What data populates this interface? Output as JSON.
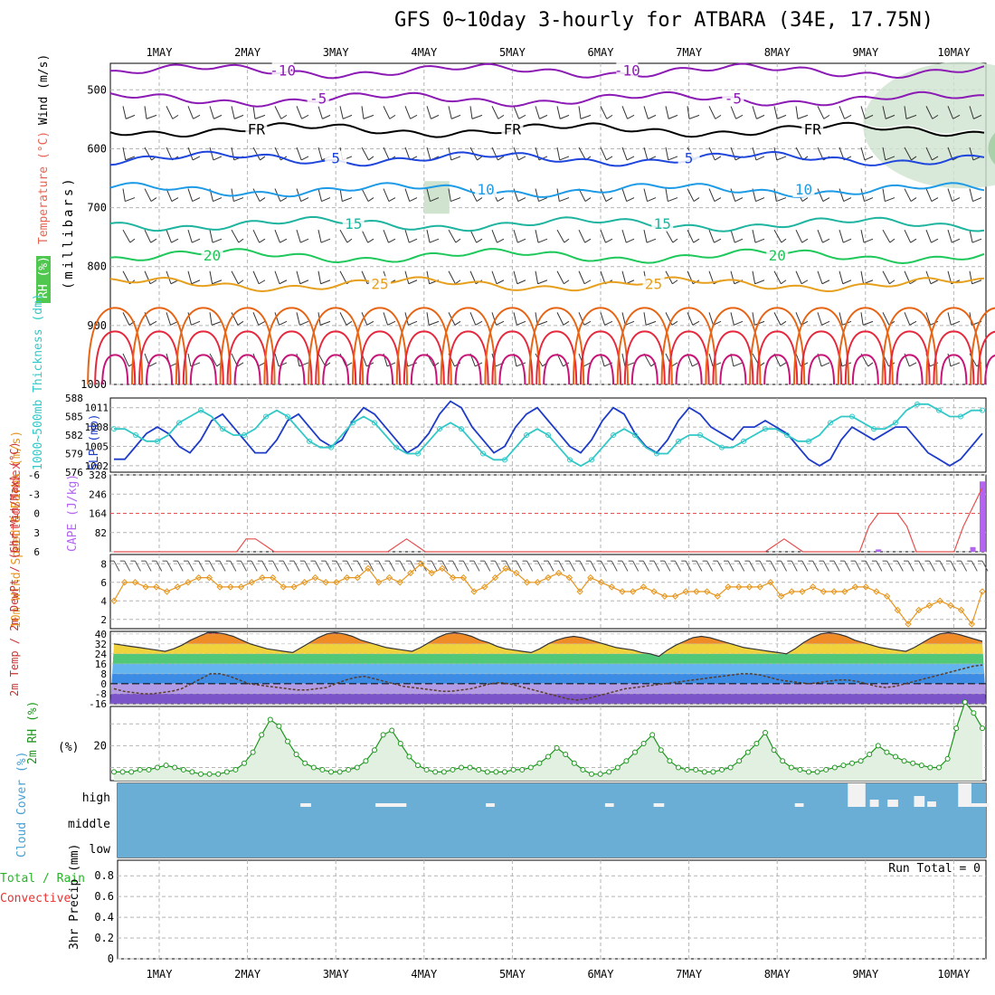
{
  "title": "GFS 0~10day 3-hourly for ATBARA (34E, 17.75N)",
  "dates": [
    "1MAY",
    "2MAY",
    "3MAY",
    "4MAY",
    "5MAY",
    "6MAY",
    "7MAY",
    "8MAY",
    "9MAY",
    "10MAY"
  ],
  "colors": {
    "purple": "#8c1ab4",
    "black": "#000000",
    "blue": "#1e46dc",
    "cyan": "#1e9be6",
    "teal": "#1eb4a0",
    "green": "#1ec85a",
    "orange": "#e6a01e",
    "darkorange": "#e66414",
    "red": "#e6283c",
    "magenta": "#c81478",
    "slp": "#1e3cc8",
    "thick": "#32c8c8",
    "li": "#e65050",
    "cape": "#b464f0",
    "wind": "#e6961e",
    "barb": "#505050",
    "rh": "#1e961e",
    "cloud": "#6aaed6",
    "precip_label_green": "#28b428",
    "precip_label_red": "#e63232"
  },
  "chart_data": [
    {
      "name": "sounding",
      "type": "contour",
      "ylabel": "(millibars)",
      "ytick_labels": [
        "500",
        "600",
        "700",
        "800",
        "900",
        "1000"
      ],
      "yticks": [
        500,
        600,
        700,
        800,
        900,
        1000
      ],
      "ylim": [
        455,
        1000
      ],
      "side_labels": {
        "rh": "RH (%)",
        "temp": "Temperature (°C)",
        "wind": "Wind (m/s)"
      },
      "isotherms": [
        {
          "label": "-10",
          "pressure": 468,
          "color": "purple",
          "label_positions": [
            1.4,
            5.3
          ]
        },
        {
          "label": "-5",
          "pressure": 516,
          "color": "purple",
          "label_positions": [
            1.8,
            6.5
          ]
        },
        {
          "label": "FR",
          "pressure": 568,
          "color": "black",
          "label_positions": [
            1.1,
            4.0,
            7.4
          ]
        },
        {
          "label": "5",
          "pressure": 617,
          "color": "blue",
          "label_positions": [
            2.0,
            6.0
          ]
        },
        {
          "label": "10",
          "pressure": 670,
          "color": "cyan",
          "label_positions": [
            3.7,
            7.3
          ]
        },
        {
          "label": "15",
          "pressure": 728,
          "color": "teal",
          "label_positions": [
            2.2,
            5.7
          ]
        },
        {
          "label": "20",
          "pressure": 782,
          "color": "green",
          "label_positions": [
            0.6,
            7.0
          ]
        },
        {
          "label": "25",
          "pressure": 830,
          "color": "orange",
          "label_positions": [
            2.5,
            5.6
          ]
        }
      ]
    },
    {
      "name": "slp_thickness",
      "type": "line",
      "ylabel_left": "1000~500mb Thickness (dm)",
      "ylabel_right": "SLP (mb)",
      "ytick_labels_left": [
        "576",
        "579",
        "582",
        "585",
        "588"
      ],
      "ytick_labels_right": [
        "1002",
        "1005",
        "1008",
        "1011"
      ],
      "ylim_right": [
        1001,
        1012.5
      ],
      "ylim_left": [
        576,
        588
      ],
      "series": [
        {
          "name": "SLP",
          "axis": "right",
          "values": [
            1003,
            1003,
            1005,
            1007,
            1008,
            1007,
            1005,
            1004,
            1006,
            1009,
            1010,
            1008,
            1006,
            1004,
            1004,
            1006,
            1009,
            1010,
            1008,
            1006,
            1005,
            1006,
            1009,
            1011,
            1010,
            1008,
            1006,
            1004,
            1005,
            1007,
            1010,
            1012,
            1011,
            1008,
            1006,
            1004,
            1005,
            1008,
            1010,
            1011,
            1009,
            1007,
            1005,
            1004,
            1006,
            1009,
            1011,
            1010,
            1007,
            1005,
            1004,
            1006,
            1009,
            1011,
            1010,
            1008,
            1007,
            1006,
            1008,
            1008,
            1009,
            1008,
            1007,
            1005,
            1003,
            1002,
            1003,
            1006,
            1008,
            1007,
            1006,
            1007,
            1008,
            1008,
            1006,
            1004,
            1003,
            1002,
            1003,
            1005,
            1007
          ]
        },
        {
          "name": "Thickness",
          "axis": "left",
          "values": [
            583,
            583,
            582,
            581,
            581,
            582,
            584,
            585,
            586,
            585,
            583,
            582,
            582,
            583,
            585,
            586,
            585,
            583,
            581,
            580,
            580,
            582,
            584,
            585,
            584,
            582,
            580,
            579,
            579,
            581,
            583,
            584,
            583,
            581,
            579,
            578,
            578,
            580,
            582,
            583,
            582,
            580,
            578,
            577,
            578,
            580,
            582,
            583,
            582,
            580,
            579,
            579,
            581,
            582,
            582,
            581,
            580,
            580,
            581,
            582,
            583,
            583,
            582,
            581,
            581,
            582,
            584,
            585,
            585,
            584,
            583,
            583,
            584,
            586,
            587,
            587,
            586,
            585,
            585,
            586,
            586
          ]
        }
      ]
    },
    {
      "name": "lifted_cape",
      "type": "line+bar",
      "ylabel_left": "Lifted Index",
      "ylabel_right": "CAPE (J/kg)",
      "ytick_labels_left": [
        "-6",
        "-3",
        "0",
        "3",
        "6"
      ],
      "ytick_labels_right": [
        "82",
        "164",
        "246",
        "328"
      ],
      "ylim_left": [
        -6,
        6
      ],
      "ylim_right": [
        0,
        328
      ],
      "lifted_index": [
        6,
        6,
        6,
        6,
        6,
        6,
        6,
        6,
        6,
        6,
        6,
        6,
        6,
        6,
        4,
        4,
        5,
        6,
        6,
        6,
        6,
        6,
        6,
        6,
        6,
        6,
        6,
        6,
        6,
        6,
        5,
        4,
        5,
        6,
        6,
        6,
        6,
        6,
        6,
        6,
        6,
        6,
        6,
        6,
        6,
        6,
        6,
        6,
        6,
        6,
        6,
        6,
        6,
        6,
        6,
        6,
        6,
        6,
        6,
        6,
        6,
        6,
        6,
        6,
        6,
        6,
        6,
        6,
        6,
        6,
        5,
        4,
        5,
        6,
        6,
        6,
        6,
        6,
        6,
        6,
        2,
        0,
        0,
        0,
        2,
        6,
        6,
        6,
        6,
        6,
        2,
        -1,
        -4
      ],
      "cape": [
        0,
        0,
        0,
        0,
        0,
        0,
        0,
        0,
        0,
        0,
        0,
        0,
        0,
        0,
        0,
        0,
        0,
        0,
        0,
        0,
        0,
        0,
        0,
        0,
        0,
        0,
        0,
        0,
        0,
        0,
        0,
        0,
        0,
        0,
        0,
        0,
        0,
        0,
        0,
        0,
        0,
        0,
        0,
        0,
        0,
        0,
        0,
        0,
        0,
        0,
        0,
        0,
        0,
        0,
        0,
        0,
        0,
        0,
        0,
        0,
        0,
        0,
        0,
        0,
        0,
        0,
        0,
        0,
        0,
        0,
        0,
        0,
        0,
        0,
        0,
        0,
        0,
        0,
        0,
        0,
        0,
        10,
        0,
        0,
        0,
        0,
        0,
        0,
        0,
        0,
        0,
        20,
        300
      ]
    },
    {
      "name": "wind10m",
      "type": "line",
      "ylabel": "10m Wind Speed & Barbs (m/s)",
      "ytick_labels": [
        "2",
        "4",
        "6",
        "8"
      ],
      "ylim": [
        1,
        9
      ],
      "values": [
        4,
        6,
        6,
        5.5,
        5.5,
        5,
        5.5,
        6,
        6.5,
        6.5,
        5.5,
        5.5,
        5.5,
        6,
        6.5,
        6.5,
        5.5,
        5.5,
        6,
        6.5,
        6,
        6,
        6.5,
        6.5,
        7.5,
        6,
        6.5,
        6,
        7,
        8,
        7,
        7.5,
        6.5,
        6.5,
        5,
        5.5,
        6.5,
        7.5,
        7,
        6,
        6,
        6.5,
        7,
        6.5,
        5,
        6.5,
        6,
        5.5,
        5,
        5,
        5.5,
        5,
        4.5,
        4.5,
        5,
        5,
        5,
        4.5,
        5.5,
        5.5,
        5.5,
        5.5,
        6,
        4.5,
        5,
        5,
        5.5,
        5,
        5,
        5,
        5.5,
        5.5,
        5,
        4.5,
        3,
        1.5,
        3,
        3.5,
        4,
        3.5,
        3,
        1.5,
        5
      ]
    },
    {
      "name": "temp2m",
      "type": "line+bands",
      "ylabel": "2m Temp / 2m DewPt / (6hr Min/Max) (°C)",
      "ytick_labels": [
        "40",
        "32",
        "24",
        "16",
        "8",
        "0",
        "-8",
        "-16"
      ],
      "ylim": [
        -16,
        42
      ],
      "temp": [
        32,
        31,
        30,
        29,
        28,
        27,
        26,
        28,
        31,
        35,
        38,
        41,
        41,
        40,
        38,
        35,
        32,
        30,
        28,
        27,
        26,
        25,
        29,
        33,
        37,
        40,
        41,
        40,
        38,
        35,
        33,
        31,
        29,
        28,
        27,
        26,
        29,
        33,
        37,
        40,
        41,
        40,
        38,
        35,
        33,
        30,
        28,
        27,
        26,
        25,
        28,
        32,
        35,
        37,
        38,
        37,
        35,
        33,
        31,
        29,
        28,
        27,
        25,
        24,
        22,
        27,
        31,
        34,
        37,
        38,
        37,
        35,
        33,
        31,
        29,
        28,
        27,
        26,
        25,
        24,
        28,
        33,
        37,
        40,
        41,
        40,
        38,
        35,
        33,
        31,
        29,
        28,
        27,
        26,
        29,
        33,
        37,
        40,
        41,
        40,
        38,
        36,
        34
      ],
      "dewpt": [
        -4,
        -6,
        -7,
        -8,
        -8,
        -7,
        -6,
        -4,
        0,
        4,
        8,
        8,
        6,
        3,
        0,
        -1,
        -2,
        -3,
        -4,
        -5,
        -5,
        -4,
        -3,
        0,
        3,
        5,
        6,
        4,
        2,
        0,
        -2,
        -3,
        -4,
        -5,
        -6,
        -6,
        -5,
        -4,
        -2,
        0,
        1,
        0,
        -2,
        -4,
        -6,
        -8,
        -10,
        -12,
        -13,
        -12,
        -10,
        -8,
        -6,
        -4,
        -3,
        -2,
        -1,
        0,
        1,
        2,
        3,
        4,
        5,
        6,
        7,
        8,
        8,
        7,
        5,
        3,
        2,
        1,
        0,
        1,
        2,
        3,
        3,
        2,
        0,
        -2,
        -3,
        -2,
        0,
        2,
        4,
        6,
        8,
        10,
        12,
        14,
        15
      ]
    },
    {
      "name": "rh2m",
      "type": "area",
      "ylabel": "2m RH (%)",
      "ytick_labels": [
        "20"
      ],
      "ylim": [
        4,
        38
      ],
      "values": [
        8,
        8,
        8,
        9,
        9,
        10,
        11,
        10,
        9,
        8,
        7,
        7,
        7,
        8,
        9,
        12,
        17,
        25,
        32,
        29,
        22,
        16,
        12,
        10,
        9,
        8,
        8,
        9,
        10,
        13,
        18,
        25,
        27,
        21,
        15,
        11,
        9,
        8,
        8,
        9,
        10,
        10,
        9,
        8,
        8,
        8,
        9,
        9,
        10,
        12,
        15,
        19,
        16,
        12,
        9,
        7,
        7,
        8,
        10,
        13,
        17,
        21,
        25,
        18,
        13,
        10,
        9,
        9,
        8,
        8,
        9,
        10,
        13,
        17,
        21,
        26,
        18,
        13,
        10,
        9,
        8,
        8,
        9,
        10,
        11,
        12,
        13,
        16,
        20,
        17,
        15,
        13,
        12,
        11,
        10,
        10,
        14,
        28,
        40,
        35,
        28
      ]
    },
    {
      "name": "cloud_cover",
      "type": "bands",
      "ylabel": "Cloud Cover (%)",
      "ytick_labels": [
        "high",
        "middle",
        "low"
      ]
    },
    {
      "name": "precip",
      "type": "bar",
      "ylabel": "3hr Precip (mm)",
      "left_labels": [
        "Total / Rain",
        "Convective"
      ],
      "ytick_labels": [
        "0",
        "0.2",
        "0.4",
        "0.6",
        "0.8"
      ],
      "ylim": [
        0,
        0.95
      ],
      "run_total": "Run Total = 0",
      "values": [
        0
      ]
    }
  ]
}
